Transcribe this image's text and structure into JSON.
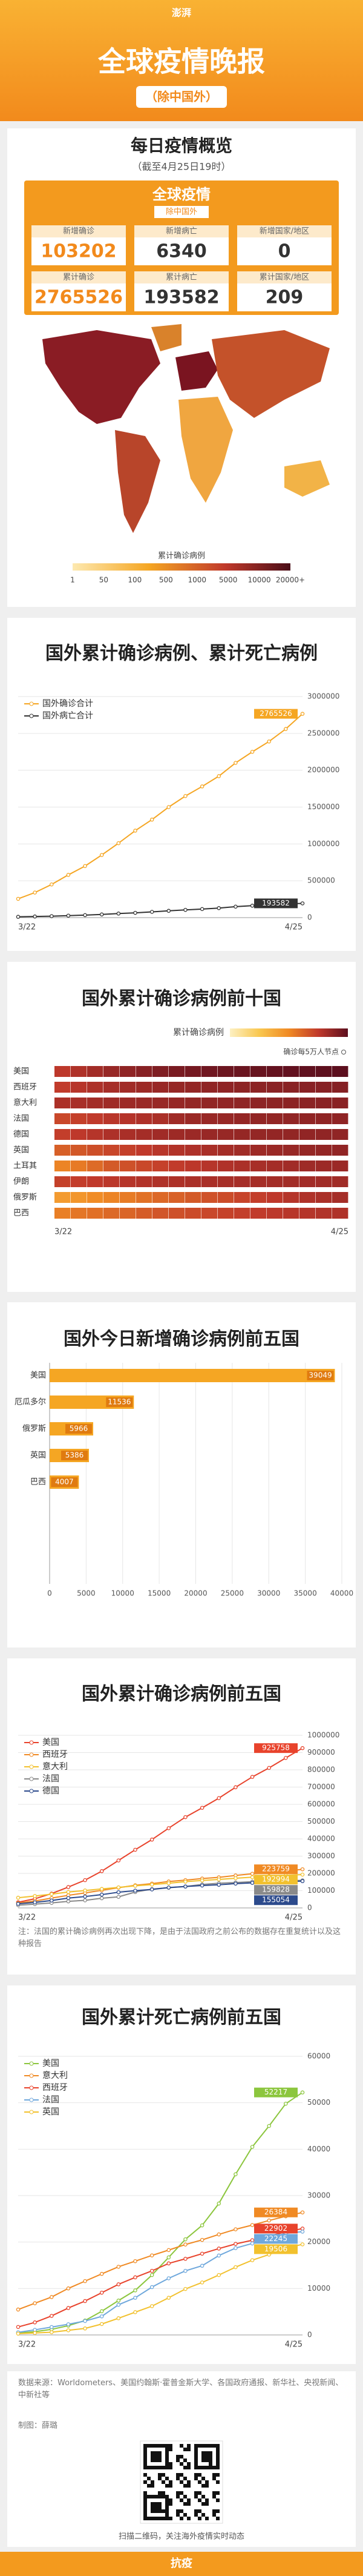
{
  "header": {
    "logo": "澎湃",
    "title": "全球疫情晚报",
    "subtitle": "（除中国外）"
  },
  "overview": {
    "title": "每日疫情概览",
    "note": "（截至4月25日19时）",
    "card_title": "全球疫情",
    "card_subtitle": "除中国外",
    "stats": [
      {
        "label": "新增确诊",
        "value": 103202
      },
      {
        "label": "新增病亡",
        "value": 6340
      },
      {
        "label": "新增国家/地区",
        "value": 0
      },
      {
        "label": "累计确诊",
        "value": 2765526
      },
      {
        "label": "累计病亡",
        "value": 193582
      },
      {
        "label": "累计国家/地区",
        "value": 209
      }
    ]
  },
  "map": {
    "legend_title": "累计确诊病例",
    "legend_labels": [
      "1",
      "50",
      "100",
      "500",
      "1000",
      "5000",
      "10000",
      "20000+"
    ]
  },
  "chart_data": [
    {
      "type": "line",
      "title": "国外累计确诊病例、累计死亡病例",
      "categories": [
        "3/22",
        null,
        null,
        null,
        null,
        null,
        null,
        null,
        null,
        null,
        null,
        null,
        null,
        null,
        null,
        null,
        null,
        "4/25"
      ],
      "series": [
        {
          "name": "国外确诊合计",
          "color": "#f5a623",
          "values": [
            255000,
            340000,
            450000,
            580000,
            700000,
            850000,
            1010000,
            1180000,
            1330000,
            1500000,
            1650000,
            1780000,
            1920000,
            2100000,
            2250000,
            2390000,
            2560000,
            2765526
          ]
        },
        {
          "name": "国外病亡合计",
          "color": "#333333",
          "values": [
            11000,
            15000,
            20000,
            27000,
            34000,
            43000,
            55000,
            65000,
            78000,
            92000,
            105000,
            116000,
            129000,
            149000,
            162000,
            173000,
            186000,
            193582
          ]
        }
      ],
      "ylim": [
        0,
        3000000
      ],
      "yticks": [
        0,
        500000,
        1000000,
        1500000,
        2000000,
        2500000,
        3000000
      ],
      "grid": true,
      "legend": "top-left",
      "end_labels": true
    },
    {
      "type": "heatmap",
      "title": "国外累计确诊病例前十国",
      "legend_title": "累计确诊病例",
      "note": "确诊每5万人节点",
      "colors": [
        "#fdf0c2",
        "#f9c74f",
        "#f08a24",
        "#c0392b",
        "#5c0f1e"
      ],
      "categories": [
        "3/22",
        null,
        null,
        null,
        null,
        null,
        null,
        null,
        null,
        null,
        null,
        null,
        null,
        null,
        null,
        null,
        null,
        "4/25"
      ],
      "series": [
        {
          "name": "美国",
          "values": [
            33000,
            53000,
            83000,
            121000,
            161000,
            213000,
            275000,
            337000,
            396000,
            462000,
            526000,
            580000,
            636000,
            699000,
            759000,
            811000,
            869000,
            925758
          ]
        },
        {
          "name": "西班牙",
          "values": [
            28000,
            40000,
            57000,
            73000,
            87000,
            102000,
            117000,
            131000,
            141000,
            153000,
            161000,
            170000,
            177000,
            188000,
            198000,
            204000,
            213000,
            223759
          ]
        },
        {
          "name": "意大利",
          "values": [
            59000,
            69000,
            80000,
            92000,
            101000,
            110000,
            119000,
            128000,
            135000,
            143000,
            152000,
            159000,
            165000,
            172000,
            178000,
            183000,
            189000,
            192994
          ]
        },
        {
          "name": "法国",
          "values": [
            16000,
            22000,
            29000,
            38000,
            44000,
            56000,
            64000,
            92000,
            109000,
            117000,
            124000,
            136000,
            143000,
            147000,
            152000,
            157000,
            158000,
            159828
          ]
        },
        {
          "name": "德国",
          "values": [
            24000,
            32000,
            43000,
            57000,
            66000,
            77000,
            91000,
            100000,
            107000,
            118000,
            124000,
            130000,
            134000,
            141000,
            145000,
            148000,
            153000,
            155054
          ]
        },
        {
          "name": "英国",
          "values": [
            5700,
            8100,
            11700,
            17100,
            22500,
            29900,
            38700,
            48400,
            55900,
            65900,
            79000,
            89600,
            99000,
            109800,
            121200,
            130200,
            139200,
            148400
          ]
        },
        {
          "name": "土耳其",
          "values": [
            1236,
            1872,
            3629,
            7402,
            10827,
            15679,
            20921,
            27069,
            34109,
            42282,
            52167,
            61049,
            69392,
            78546,
            86306,
            95591,
            101790,
            107773
          ]
        },
        {
          "name": "伊朗",
          "values": [
            21638,
            24811,
            29406,
            35408,
            41495,
            47593,
            53183,
            58226,
            62589,
            66220,
            70029,
            73303,
            76389,
            79494,
            82211,
            84802,
            87026,
            89328
          ]
        },
        {
          "name": "俄罗斯",
          "values": [
            367,
            495,
            840,
            1264,
            1836,
            2777,
            4149,
            5389,
            7497,
            10131,
            13584,
            18328,
            24490,
            32008,
            42853,
            52763,
            62773,
            74588
          ]
        },
        {
          "name": "巴西",
          "values": [
            1546,
            2201,
            2915,
            3904,
            4579,
            6836,
            9056,
            11130,
            13717,
            16188,
            20727,
            23430,
            28320,
            33682,
            38654,
            43079,
            49492,
            54043
          ]
        }
      ]
    },
    {
      "type": "hbar",
      "title": "国外今日新增确诊病例前五国",
      "color": "#f5a623",
      "categories": [
        "美国",
        "厄瓜多尔",
        "俄罗斯",
        "英国",
        "巴西"
      ],
      "values": [
        39049,
        11536,
        5966,
        5386,
        4007
      ],
      "xlim": [
        0,
        40000
      ],
      "xticks": [
        0,
        5000,
        10000,
        15000,
        20000,
        25000,
        30000,
        35000,
        40000
      ],
      "grid": true
    },
    {
      "type": "line",
      "title": "国外累计确诊病例前五国",
      "categories": [
        "3/22",
        null,
        null,
        null,
        null,
        null,
        null,
        null,
        null,
        null,
        null,
        null,
        null,
        null,
        null,
        null,
        null,
        "4/25"
      ],
      "series": [
        {
          "name": "美国",
          "color": "#e8432c",
          "values": [
            33000,
            53000,
            83000,
            121000,
            161000,
            213000,
            275000,
            337000,
            396000,
            462000,
            526000,
            580000,
            636000,
            699000,
            759000,
            811000,
            869000,
            925758
          ]
        },
        {
          "name": "西班牙",
          "color": "#f08a24",
          "values": [
            28000,
            40000,
            57000,
            73000,
            87000,
            102000,
            117000,
            131000,
            141000,
            153000,
            161000,
            170000,
            177000,
            188000,
            198000,
            204000,
            213000,
            223759
          ]
        },
        {
          "name": "意大利",
          "color": "#f2c12e",
          "values": [
            59000,
            69000,
            80000,
            92000,
            101000,
            110000,
            119000,
            128000,
            135000,
            143000,
            152000,
            159000,
            165000,
            172000,
            178000,
            183000,
            189000,
            192994
          ]
        },
        {
          "name": "法国",
          "color": "#8a8a8a",
          "values": [
            16000,
            22000,
            29000,
            38000,
            44000,
            56000,
            64000,
            92000,
            109000,
            117000,
            124000,
            136000,
            143000,
            147000,
            152000,
            157000,
            158000,
            159828
          ]
        },
        {
          "name": "德国",
          "color": "#2c4a8c",
          "values": [
            24000,
            32000,
            43000,
            57000,
            66000,
            77000,
            91000,
            100000,
            107000,
            118000,
            124000,
            130000,
            134000,
            141000,
            145000,
            148000,
            153000,
            155054
          ]
        }
      ],
      "ylim": [
        0,
        1000000
      ],
      "yticks": [
        0,
        100000,
        200000,
        300000,
        400000,
        500000,
        600000,
        700000,
        800000,
        900000,
        1000000
      ],
      "grid": true,
      "legend": "top-left",
      "end_labels": true,
      "note": "注：法国的累计确诊病例再次出现下降，是由于法国政府之前公布的数据存在重复统计以及这种报告"
    },
    {
      "type": "line",
      "title": "国外累计死亡病例前五国",
      "categories": [
        "3/22",
        null,
        null,
        null,
        null,
        null,
        null,
        null,
        null,
        null,
        null,
        null,
        null,
        null,
        null,
        null,
        null,
        "4/25"
      ],
      "series": [
        {
          "name": "美国",
          "color": "#8cc63e",
          "values": [
            400,
            700,
            1200,
            2000,
            3100,
            5100,
            7400,
            9600,
            12900,
            16700,
            20600,
            23600,
            28300,
            34600,
            40500,
            45000,
            49800,
            52217
          ]
        },
        {
          "name": "意大利",
          "color": "#f08a24",
          "values": [
            5476,
            6820,
            8165,
            10023,
            11591,
            13155,
            14681,
            15887,
            17127,
            18279,
            19468,
            20465,
            21645,
            22745,
            23660,
            24648,
            25549,
            26384
          ]
        },
        {
          "name": "西班牙",
          "color": "#e8432c",
          "values": [
            1720,
            2700,
            4100,
            5800,
            7300,
            9100,
            10900,
            12400,
            13800,
            15400,
            16400,
            17500,
            18600,
            19600,
            20400,
            21300,
            22200,
            22902
          ]
        },
        {
          "name": "法国",
          "color": "#6fa8dc",
          "values": [
            560,
            1100,
            1700,
            2300,
            3000,
            4000,
            6500,
            8000,
            10300,
            12200,
            13800,
            14900,
            17100,
            18700,
            19700,
            20800,
            21900,
            22245
          ]
        },
        {
          "name": "英国",
          "color": "#f2c12e",
          "values": [
            280,
            420,
            580,
            1000,
            1400,
            2350,
            3600,
            4900,
            6200,
            8000,
            9900,
            11300,
            12900,
            14600,
            16100,
            17300,
            18700,
            19506
          ]
        }
      ],
      "ylim": [
        0,
        60000
      ],
      "yticks": [
        0,
        10000,
        20000,
        30000,
        40000,
        50000,
        60000
      ],
      "grid": true,
      "legend": "top-left",
      "end_labels": true
    }
  ],
  "footer": {
    "source": "数据来源：Worldometers、美国约翰斯·霍普金斯大学、各国政府通报、新华社、央视新闻、中新社等",
    "credit": "制图：薛璐",
    "qr_caption": "扫描二维码，关注海外疫情实时动态",
    "bottom": "抗疫"
  }
}
